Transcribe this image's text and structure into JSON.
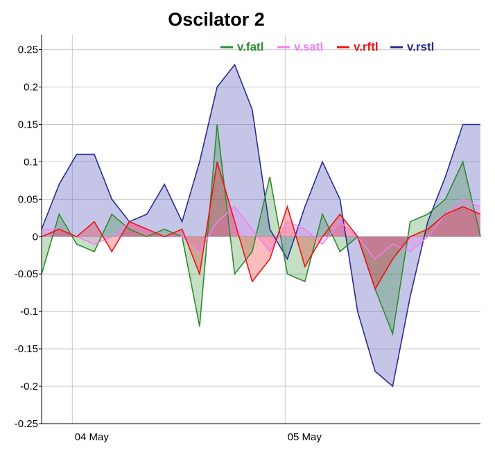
{
  "chart_data": {
    "type": "area",
    "title": "Oscilator 2",
    "xlabel": "",
    "ylabel": "",
    "ylim": [
      -0.25,
      0.27
    ],
    "y_ticks": [
      "0.25",
      "0.2",
      "0.15",
      "0.1",
      "0.05",
      "0",
      "-0.05",
      "-0.1",
      "-0.15",
      "-0.2",
      "-0.25"
    ],
    "y_tick_values": [
      0.25,
      0.2,
      0.15,
      0.1,
      0.05,
      0,
      -0.05,
      -0.1,
      -0.15,
      -0.2,
      -0.25
    ],
    "x_tick_labels": [
      "04 May",
      "05 May"
    ],
    "x_tick_positions": [
      0.07,
      0.555
    ],
    "legend_placement": "top-right",
    "grid": true,
    "x": [
      0,
      0.04,
      0.08,
      0.12,
      0.16,
      0.2,
      0.24,
      0.28,
      0.32,
      0.36,
      0.4,
      0.44,
      0.48,
      0.52,
      0.56,
      0.6,
      0.64,
      0.68,
      0.72,
      0.76,
      0.8,
      0.84,
      0.88,
      0.92,
      0.96,
      1.0
    ],
    "series": [
      {
        "name": "v.fatl",
        "color": "#2e8b2e",
        "fill": "rgba(46,139,46,0.28)",
        "values": [
          -0.05,
          0.03,
          -0.01,
          -0.02,
          0.03,
          0.01,
          0.0,
          0.01,
          0.0,
          -0.12,
          0.15,
          -0.05,
          -0.02,
          0.08,
          -0.05,
          -0.06,
          0.03,
          -0.02,
          0.0,
          -0.07,
          -0.13,
          0.02,
          0.03,
          0.05,
          0.1,
          0.0
        ]
      },
      {
        "name": "v.satl",
        "color": "#ee82ee",
        "fill": "rgba(238,130,238,0.3)",
        "values": [
          0.01,
          0.01,
          0.0,
          -0.01,
          0.0,
          0.02,
          0.01,
          0.0,
          0.0,
          -0.02,
          0.02,
          0.04,
          0.01,
          -0.02,
          0.02,
          0.01,
          -0.01,
          0.02,
          0.0,
          -0.03,
          -0.01,
          -0.02,
          0.0,
          0.03,
          0.05,
          0.04
        ]
      },
      {
        "name": "v.rftl",
        "color": "#ee1111",
        "fill": "rgba(238,17,17,0.28)",
        "values": [
          0.0,
          0.01,
          0.0,
          0.02,
          -0.02,
          0.02,
          0.01,
          0.0,
          0.01,
          -0.05,
          0.1,
          0.02,
          -0.06,
          -0.03,
          0.04,
          -0.04,
          0.0,
          0.03,
          0.0,
          -0.07,
          -0.03,
          0.0,
          0.01,
          0.03,
          0.04,
          0.03
        ]
      },
      {
        "name": "v.rstl",
        "color": "#2b2b8f",
        "fill": "rgba(90,90,190,0.35)",
        "values": [
          0.01,
          0.07,
          0.11,
          0.11,
          0.05,
          0.02,
          0.03,
          0.07,
          0.02,
          0.1,
          0.2,
          0.23,
          0.17,
          0.01,
          -0.03,
          0.04,
          0.1,
          0.05,
          -0.1,
          -0.18,
          -0.2,
          -0.08,
          0.02,
          0.08,
          0.15,
          0.15
        ]
      }
    ]
  }
}
